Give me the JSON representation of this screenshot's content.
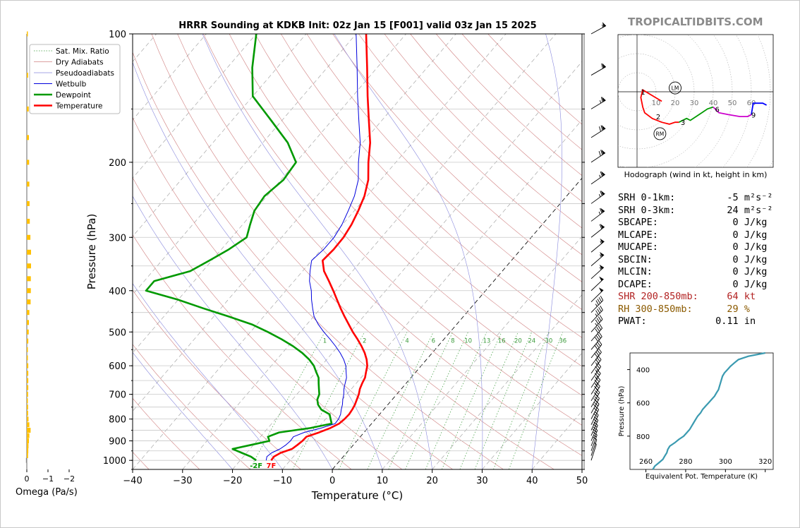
{
  "title": "HRRR Sounding at KDKB Init: 02z Jan 15 [F001] valid 03z Jan 15 2025",
  "brand": "TROPICALTIDBITS.COM",
  "colors": {
    "temperature": "#ff0000",
    "dewpoint": "#009900",
    "wetbulb": "#0000dd",
    "omega": "#ffc000",
    "thetae": "#3a9ab0",
    "hodo_0_3": "#ff0000",
    "hodo_3_6": "#009900",
    "hodo_6_9": "#cc00cc",
    "hodo_9_12": "#0000ff"
  },
  "chart_data": [
    {
      "type": "line",
      "name": "skewt",
      "xlabel": "Temperature (°C)",
      "ylabel": "Pressure (hPa)",
      "xlim": [
        -40,
        50
      ],
      "ylim": [
        1050,
        100
      ],
      "y_scale": "log",
      "skewed": true,
      "x_ticks": [
        -40,
        -30,
        -20,
        -10,
        0,
        10,
        20,
        30,
        40,
        50
      ],
      "x_tick_labels": [
        "−40",
        "−30",
        "−20",
        "−10",
        "0",
        "10",
        "20",
        "30",
        "40",
        "50"
      ],
      "y_ticks": [
        100,
        200,
        300,
        400,
        500,
        600,
        700,
        800,
        900,
        1000
      ],
      "grid": true,
      "legend_position": "top-left",
      "legend": [
        "Sat. Mix. Ratio",
        "Dry Adiabats",
        "Pseudoadiabats",
        "Wetbulb",
        "Dewpoint",
        "Temperature"
      ],
      "mixing_ratio_labels": [
        "1",
        "2",
        "4",
        "6",
        "8",
        "10",
        "13",
        "16",
        "20",
        "24",
        "30",
        "36"
      ],
      "surface_temp_label": "7F",
      "surface_dew_label": "-2F",
      "series": [
        {
          "name": "Temperature",
          "p": [
            1000,
            980,
            960,
            940,
            920,
            900,
            880,
            860,
            840,
            820,
            800,
            780,
            760,
            740,
            720,
            700,
            680,
            660,
            640,
            620,
            600,
            580,
            560,
            540,
            520,
            500,
            480,
            460,
            440,
            420,
            400,
            380,
            360,
            340,
            320,
            300,
            280,
            260,
            240,
            220,
            200,
            180,
            160,
            140,
            120,
            100
          ],
          "t": [
            -13.8,
            -13.9,
            -13.2,
            -11.6,
            -11.2,
            -10.9,
            -10.8,
            -9.0,
            -7.5,
            -6.5,
            -6.2,
            -6.1,
            -6.3,
            -6.6,
            -7.1,
            -7.6,
            -8.3,
            -8.8,
            -9.2,
            -10.0,
            -10.8,
            -12.0,
            -13.5,
            -15.3,
            -17.3,
            -19.5,
            -21.6,
            -23.8,
            -26.0,
            -28.2,
            -30.5,
            -33.0,
            -35.7,
            -37.8,
            -37.5,
            -37.6,
            -38.2,
            -39.2,
            -40.5,
            -42.5,
            -45.5,
            -48.5,
            -52.5,
            -57.0,
            -62.0,
            -68.0
          ]
        },
        {
          "name": "Dewpoint",
          "p": [
            1000,
            980,
            960,
            940,
            920,
            900,
            880,
            860,
            840,
            820,
            800,
            780,
            760,
            740,
            720,
            700,
            680,
            660,
            640,
            620,
            600,
            580,
            560,
            540,
            520,
            500,
            480,
            460,
            440,
            420,
            400,
            380,
            360,
            340,
            320,
            300,
            280,
            260,
            240,
            220,
            200,
            180,
            160,
            140,
            120,
            100
          ],
          "t": [
            -16.8,
            -18.5,
            -21.0,
            -23.5,
            -20.5,
            -17.5,
            -18.5,
            -17.0,
            -11.5,
            -8.0,
            -9.0,
            -10.0,
            -12.5,
            -14.0,
            -15.0,
            -15.5,
            -16.5,
            -17.5,
            -18.5,
            -20.0,
            -21.5,
            -23.5,
            -26.0,
            -29.0,
            -32.5,
            -36.5,
            -41.0,
            -47.0,
            -53.5,
            -60.0,
            -68.0,
            -68.0,
            -62.5,
            -60.5,
            -58.5,
            -57.0,
            -58.5,
            -60.0,
            -60.5,
            -59.5,
            -60.0,
            -65.0,
            -72.0,
            -80.0,
            -85.0,
            -90.0
          ]
        },
        {
          "name": "Wetbulb",
          "p": [
            1000,
            980,
            960,
            940,
            920,
            900,
            880,
            860,
            840,
            820,
            800,
            780,
            760,
            740,
            720,
            700,
            680,
            660,
            640,
            620,
            600,
            580,
            560,
            540,
            520,
            500,
            480,
            460,
            440,
            420,
            400,
            380,
            360,
            340,
            320,
            300,
            280,
            260,
            240,
            220,
            200,
            180,
            160,
            140,
            120,
            100
          ],
          "t": [
            -14.8,
            -15.3,
            -15.0,
            -14.0,
            -13.5,
            -13.3,
            -13.4,
            -12.0,
            -9.3,
            -7.3,
            -7.4,
            -7.8,
            -8.5,
            -9.1,
            -9.9,
            -10.6,
            -11.5,
            -12.2,
            -12.9,
            -14.0,
            -15.1,
            -16.6,
            -18.4,
            -20.5,
            -22.8,
            -25.3,
            -27.7,
            -29.9,
            -31.6,
            -33.3,
            -34.9,
            -36.9,
            -38.5,
            -40.0,
            -39.5,
            -39.5,
            -40.1,
            -41.2,
            -42.5,
            -44.5,
            -47.5,
            -50.5,
            -54.5,
            -59.0,
            -64.0,
            -70.0
          ]
        }
      ]
    },
    {
      "type": "bar",
      "name": "omega",
      "xlabel": "Omega (Pa/s)",
      "x_ticks": [
        0,
        -1,
        -2
      ],
      "x_tick_labels": [
        "0",
        "−1",
        "−2"
      ],
      "p": [
        1000,
        975,
        950,
        925,
        900,
        875,
        850,
        825,
        800,
        775,
        750,
        725,
        700,
        675,
        650,
        625,
        600,
        575,
        550,
        525,
        500,
        475,
        450,
        425,
        400,
        375,
        350,
        325,
        300,
        275,
        250,
        225,
        200,
        175,
        150,
        125,
        100
      ],
      "values": [
        0.04,
        -0.06,
        -0.07,
        -0.08,
        -0.1,
        -0.12,
        -0.18,
        -0.12,
        -0.08,
        -0.06,
        -0.06,
        -0.05,
        -0.06,
        -0.07,
        -0.07,
        -0.07,
        -0.07,
        -0.05,
        -0.05,
        -0.07,
        -0.09,
        -0.1,
        -0.12,
        -0.18,
        -0.19,
        -0.19,
        -0.2,
        -0.2,
        -0.17,
        -0.14,
        -0.13,
        -0.12,
        -0.11,
        -0.1,
        -0.09,
        -0.06,
        -0.05
      ]
    },
    {
      "type": "line",
      "name": "hodograph",
      "caption": "Hodograph (wind in kt, height in km)",
      "ring_labels": [
        "10",
        "20",
        "30",
        "40",
        "50",
        "60"
      ],
      "height_labels": [
        "1",
        "2",
        "3",
        "6",
        "9"
      ],
      "storm_motion_labels": [
        "LM",
        "RM"
      ],
      "segments": [
        {
          "name": "0-3 km",
          "u": [
            13,
            3,
            2,
            3,
            4,
            8,
            13,
            17,
            20,
            22
          ],
          "v": [
            -5,
            1,
            -3,
            -8,
            -11,
            -14,
            -16,
            -17,
            -16,
            -16
          ]
        },
        {
          "name": "3-6 km",
          "u": [
            22,
            26,
            28,
            31,
            34,
            37,
            40
          ],
          "v": [
            -16,
            -14,
            -15,
            -13,
            -11,
            -9,
            -8
          ]
        },
        {
          "name": "6-9 km",
          "u": [
            40,
            43,
            48,
            54,
            58,
            60
          ],
          "v": [
            -8,
            -11,
            -12,
            -13,
            -13,
            -12
          ]
        },
        {
          "name": "9+ km",
          "u": [
            60,
            61,
            64,
            66,
            68
          ],
          "v": [
            -12,
            -6,
            -6,
            -6,
            -7
          ]
        }
      ],
      "points": {
        "LM": [
          20,
          2
        ],
        "RM": [
          12,
          -22
        ]
      }
    },
    {
      "type": "line",
      "name": "thetae",
      "xlabel": "Equivalent Pot. Temperature (K)",
      "ylabel": "Pressure (hPa)",
      "xlim": [
        252,
        324
      ],
      "ylim": [
        1000,
        300
      ],
      "x_ticks": [
        260,
        280,
        300,
        320
      ],
      "y_ticks": [
        400,
        600,
        800
      ],
      "series": [
        {
          "name": "Theta-E",
          "p": [
            1000,
            980,
            960,
            940,
            920,
            900,
            880,
            860,
            840,
            820,
            800,
            780,
            760,
            740,
            720,
            700,
            680,
            660,
            640,
            620,
            600,
            580,
            560,
            540,
            520,
            500,
            480,
            460,
            440,
            420,
            400,
            380,
            360,
            340,
            320,
            300
          ],
          "t": [
            263.5,
            264.5,
            266.5,
            268.5,
            269.5,
            270.5,
            271.0,
            272.0,
            274.5,
            276.5,
            279.0,
            280.5,
            282.0,
            283.0,
            284.0,
            285.0,
            286.0,
            287.5,
            288.5,
            290.0,
            291.5,
            293.0,
            294.5,
            295.5,
            296.5,
            297.0,
            297.5,
            298.0,
            298.5,
            299.5,
            301.0,
            302.5,
            304.5,
            306.5,
            311.5,
            320.0
          ]
        }
      ]
    }
  ],
  "barb_levels": [
    1000,
    975,
    950,
    925,
    900,
    875,
    850,
    825,
    800,
    775,
    750,
    725,
    700,
    675,
    650,
    625,
    600,
    575,
    550,
    525,
    500,
    475,
    450,
    425,
    400,
    375,
    350,
    325,
    300,
    275,
    250,
    225,
    200,
    175,
    150,
    125,
    100
  ],
  "barb_speeds": [
    5,
    10,
    15,
    20,
    20,
    25,
    25,
    25,
    30,
    30,
    30,
    30,
    35,
    35,
    35,
    35,
    40,
    40,
    40,
    40,
    45,
    45,
    45,
    50,
    50,
    55,
    55,
    55,
    60,
    65,
    65,
    65,
    70,
    70,
    65,
    60,
    55
  ],
  "indices": [
    {
      "label": "SRH 0-1km:",
      "value": "-5",
      "unit": "m²s⁻²",
      "color": "#000000"
    },
    {
      "label": "SRH 0-3km:",
      "value": "24",
      "unit": "m²s⁻²",
      "color": "#000000"
    },
    {
      "label": "SBCAPE:",
      "value": "0",
      "unit": "J/kg",
      "color": "#000000"
    },
    {
      "label": "MLCAPE:",
      "value": "0",
      "unit": "J/kg",
      "color": "#000000"
    },
    {
      "label": "MUCAPE:",
      "value": "0",
      "unit": "J/kg",
      "color": "#000000"
    },
    {
      "label": "SBCIN:",
      "value": "0",
      "unit": "J/kg",
      "color": "#000000"
    },
    {
      "label": "MLCIN:",
      "value": "0",
      "unit": "J/kg",
      "color": "#000000"
    },
    {
      "label": "DCAPE:",
      "value": "0",
      "unit": "J/kg",
      "color": "#000000"
    },
    {
      "label": "SHR 200-850mb:",
      "value": "64",
      "unit": "kt",
      "color": "#b22222"
    },
    {
      "label": "RH 300-850mb:",
      "value": "29",
      "unit": "%",
      "color": "#8b5a00"
    },
    {
      "label": "PWAT:",
      "value": "0.11",
      "unit": "in",
      "color": "#000000"
    }
  ]
}
